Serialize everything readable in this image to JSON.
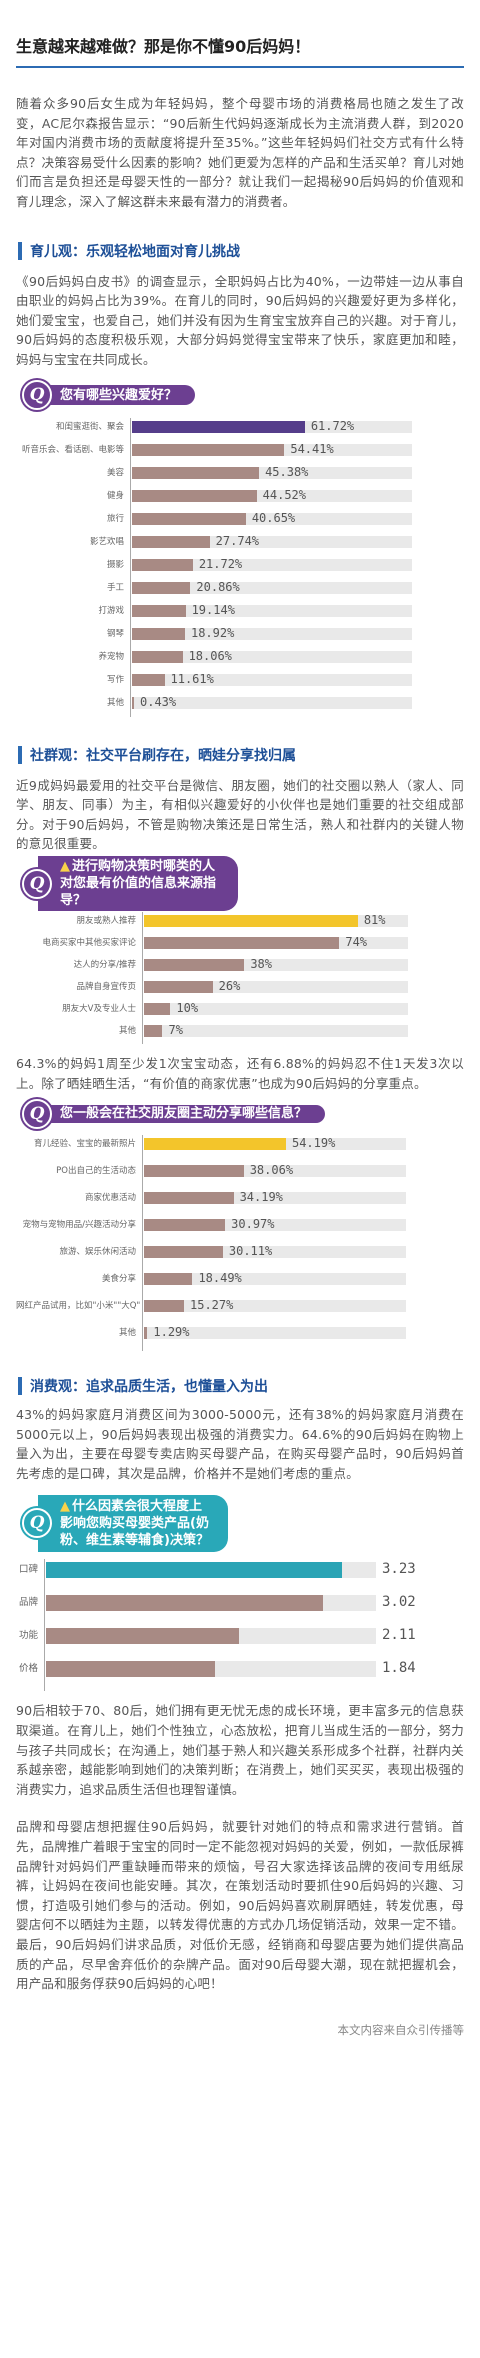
{
  "title": "生意越来越难做？那是你不懂90后妈妈！",
  "intro": "随着众多90后女生成为年轻妈妈，整个母婴市场的消费格局也随之发生了改变，AC尼尔森报告显示：“90后新生代妈妈逐渐成长为主流消费人群，到2020年对国内消费市场的贡献度将提升至35%。”这些年轻妈妈们社交方式有什么特点？决策容易受什么因素的影响？她们更爱为怎样的产品和生活买单？育儿对她们而言是负担还是母婴天性的一部分？就让我们一起揭秘90后妈妈的价值观和育儿理念，深入了解这群未来最有潜力的消费者。",
  "sections": {
    "parenting": {
      "heading": "育儿观：乐观轻松地面对育儿挑战",
      "text": "《90后妈妈白皮书》的调查显示，全职妈妈占比为40%，一边带娃一边从事自由职业的妈妈占比为39%。在育儿的同时，90后妈妈的兴趣爱好更为多样化，她们爱宝宝，也爱自己，她们并没有因为生育宝宝放弃自己的兴趣。对于育儿，90后妈妈的态度积极乐观，大部分妈妈觉得宝宝带来了快乐，家庭更加和睦，妈妈与宝宝在共同成长。"
    },
    "social": {
      "heading": "社群观：社交平台刷存在，晒娃分享找归属",
      "text1": "近9成妈妈最爱用的社交平台是微信、朋友圈，她们的社交圈以熟人（家人、同学、朋友、同事）为主，有相似兴趣爱好的小伙伴也是她们重要的社交组成部分。对于90后妈妈，不管是购物决策还是日常生活，熟人和社群内的关键人物的意见很重要。",
      "text2": "64.3%的妈妈1周至少发1次宝宝动态，还有6.88%的妈妈忍不住1天发3次以上。除了晒娃晒生活，“有价值的商家优惠”也成为90后妈妈的分享重点。"
    },
    "consumption": {
      "heading": "消费观：追求品质生活，也懂量入为出",
      "text1": "43%的妈妈家庭月消费区间为3000-5000元，还有38%的妈妈家庭月消费在5000元以上，90后妈妈表现出极强的消费实力。64.6%的90后妈妈在购物上量入为出，主要在母婴专卖店购买母婴产品，在购买母婴产品时，90后妈妈首先考虑的是口碑，其次是品牌，价格并不是她们考虑的重点。",
      "text2": "90后相较于70、80后，她们拥有更无忧无虑的成长环境，更丰富多元的信息获取渠道。在育儿上，她们个性独立，心态放松，把育儿当成生活的一部分，努力与孩子共同成长；在沟通上，她们基于熟人和兴趣关系形成多个社群，社群内关系越亲密，越能影响到她们的决策判断；在消费上，她们买买买，表现出极强的消费实力，追求品质生活但也理智谨慎。",
      "text3": "品牌和母婴店想把握住90后妈妈，就要针对她们的特点和需求进行营销。首先，品牌推广着眼于宝宝的同时一定不能忽视对妈妈的关爱，例如，一款低尿裤品牌针对妈妈们严重缺睡而带来的烦恼，号召大家选择该品牌的夜间专用纸尿裤，让妈妈在夜间也能安睡。其次，在策划活动时要抓住90后妈妈的兴趣、习惯，打造吸引她们参与的活动。例如，90后妈妈喜欢刷屏晒娃，转发优惠，母婴店何不以晒娃为主题，以转发得优惠的方式办几场促销活动，效果一定不错。最后，90后妈妈们讲求品质，对低价无感，经销商和母婴店要为她们提供高品质的产品，尽早舍弃低价的杂牌产品。面对90后母婴大潮，现在就把握机会，用产品和服务俘获90后妈妈的心吧！"
    }
  },
  "footnote": "本文内容来自众引传播等",
  "chart_data": [
    {
      "type": "bar",
      "orientation": "horizontal",
      "title": "您有哪些兴趣爱好？",
      "categories": [
        "和闺蜜逛街、聚会",
        "听音乐会、看话剧、电影等",
        "美容",
        "健身",
        "旅行",
        "影艺欢唱",
        "摄影",
        "手工",
        "打游戏",
        "钢琴",
        "养宠物",
        "写作",
        "其他"
      ],
      "values": [
        61.72,
        54.41,
        45.38,
        44.52,
        40.65,
        27.74,
        21.72,
        20.86,
        19.14,
        18.92,
        18.06,
        11.61,
        0.43
      ],
      "value_labels": [
        "61.72%",
        "54.41%",
        "45.38%",
        "44.52%",
        "40.65%",
        "27.74%",
        "21.72%",
        "20.86%",
        "19.14%",
        "18.92%",
        "18.06%",
        "11.61%",
        "0.43%"
      ],
      "highlight_index": 0,
      "xlim": [
        0,
        100
      ],
      "colors": {
        "highlight": "#553d8a",
        "bar": "#a88a84",
        "track": "#e9e9e9"
      }
    },
    {
      "type": "bar",
      "orientation": "horizontal",
      "title": "进行购物决策时哪类的人对您最有价值的信息来源指导？",
      "categories": [
        "朋友或熟人推荐",
        "电商买家中其他买家评论",
        "达人的分享/推荐",
        "品牌自身宣传页",
        "朋友大V及专业人士",
        "其他"
      ],
      "values": [
        81,
        74,
        38,
        26,
        10,
        7
      ],
      "value_labels": [
        "81%",
        "74%",
        "38%",
        "26%",
        "10%",
        "7%"
      ],
      "highlight_index": 0,
      "xlim": [
        0,
        100
      ],
      "colors": {
        "highlight": "#f3c52b",
        "bar": "#a88a84",
        "track": "#e9e9e9"
      }
    },
    {
      "type": "bar",
      "orientation": "horizontal",
      "title": "您一般会在社交朋友圈主动分享哪些信息？",
      "categories": [
        "育儿经验、宝宝的最新照片",
        "PO出自己的生活动态",
        "商家优惠活动",
        "宠物与宠物用品/兴趣活动分享",
        "旅游、娱乐休闲活动",
        "美食分享",
        "网红产品试用，比如\"小米\"\"大Q\"",
        "其他"
      ],
      "values": [
        54.19,
        38.06,
        34.19,
        30.97,
        30.11,
        18.49,
        15.27,
        1.29
      ],
      "value_labels": [
        "54.19%",
        "38.06%",
        "34.19%",
        "30.97%",
        "30.11%",
        "18.49%",
        "15.27%",
        "1.29%"
      ],
      "highlight_index": 0,
      "xlim": [
        0,
        100
      ],
      "colors": {
        "highlight": "#f3c52b",
        "bar": "#a88a84",
        "track": "#e9e9e9"
      }
    },
    {
      "type": "bar",
      "orientation": "horizontal",
      "title": "什么因素会很大程度上影响您购买母婴类产品(奶粉、维生素等辅食)决策？",
      "categories": [
        "口碑",
        "品牌",
        "功能",
        "价格"
      ],
      "values": [
        3.23,
        3.02,
        2.11,
        1.84
      ],
      "value_labels": [
        "3.23",
        "3.02",
        "2.11",
        "1.84"
      ],
      "highlight_index": 0,
      "xlim": [
        0,
        3.6
      ],
      "colors": {
        "highlight": "#2aa4b5",
        "bar": "#a88a84",
        "track": "#e9e9e9"
      }
    }
  ]
}
